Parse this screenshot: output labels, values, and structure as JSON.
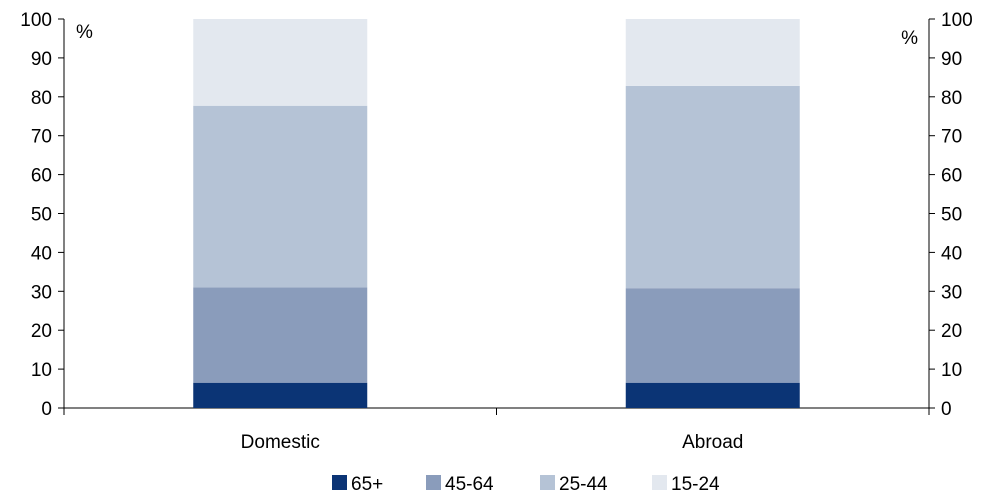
{
  "chart_data": {
    "type": "bar",
    "stacked": true,
    "categories": [
      "Domestic",
      "Abroad"
    ],
    "series": [
      {
        "name": "65+",
        "color": "#0b3475",
        "values": [
          6.5,
          6.5
        ]
      },
      {
        "name": "45-64",
        "color": "#8a9cbb",
        "values": [
          24.5,
          24.3
        ]
      },
      {
        "name": "25-44",
        "color": "#b5c3d6",
        "values": [
          46.7,
          52.0
        ]
      },
      {
        "name": "15-24",
        "color": "#e3e8ef",
        "values": [
          22.3,
          17.2
        ]
      }
    ],
    "ylim": [
      0,
      100
    ],
    "yticks": [
      "0",
      "10",
      "20",
      "30",
      "40",
      "50",
      "60",
      "70",
      "80",
      "90",
      "100"
    ],
    "y_unit_left": "%",
    "y_unit_right": "%",
    "grid": false,
    "legend_position": "bottom"
  }
}
